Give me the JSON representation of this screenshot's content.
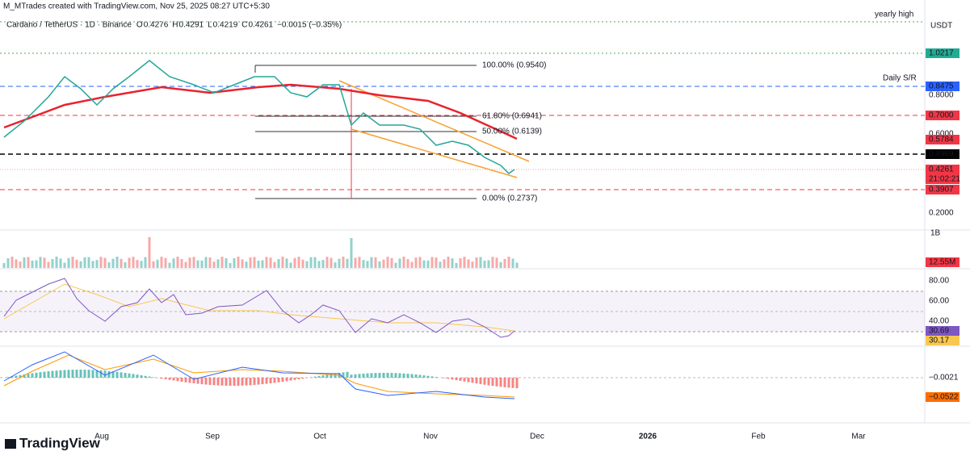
{
  "header": {
    "credit": "M_MTrades created with TradingView.com, Nov 25, 2025 08:27 UTC+5:30",
    "symbol": "Cardano / TetherUS · 1D · Binance",
    "ohlc": [
      "O",
      "0.4276",
      "H",
      "0.4291",
      "L",
      "0.4219",
      "C",
      "0.4261",
      "−0.0015 (−0.35%)"
    ]
  },
  "price_axis": {
    "currency": "USDT",
    "yearly_high": "yearly high",
    "daily_sr": "Daily S/R",
    "labels": [
      {
        "text": "1.0217",
        "kind": "green"
      },
      {
        "text": "0.8475",
        "kind": "blue"
      },
      {
        "text": "0.8000",
        "kind": "plain"
      },
      {
        "text": "0.7000",
        "kind": "red"
      },
      {
        "text": "0.6000",
        "kind": "plain"
      },
      {
        "text": "0.5784",
        "kind": "red"
      },
      {
        "text": "0.4969",
        "kind": "black"
      },
      {
        "text": "0.4261",
        "kind": "red"
      },
      {
        "text": "21:02:21",
        "kind": "red"
      },
      {
        "text": "0.3907",
        "kind": "red"
      },
      {
        "text": "0.2000",
        "kind": "plain"
      }
    ]
  },
  "fib": [
    "100.00% (0.9540)",
    "61.80% (0.6941)",
    "50.00% (0.6139)",
    "0.00% (0.2737)"
  ],
  "volume_axis": {
    "unit": "1B",
    "last": "12.55M"
  },
  "rsi_axis": {
    "labels": [
      "80.00",
      "60.00",
      "40.00"
    ],
    "rsi": "30.69",
    "ma": "30.17"
  },
  "macd_axis": {
    "hist": "−0.0021",
    "line": "−0.0522"
  },
  "time_axis": [
    "Aug",
    "Sep",
    "Oct",
    "Nov",
    "Dec",
    "2026",
    "Feb",
    "Mar"
  ],
  "brand": "TradingView"
}
